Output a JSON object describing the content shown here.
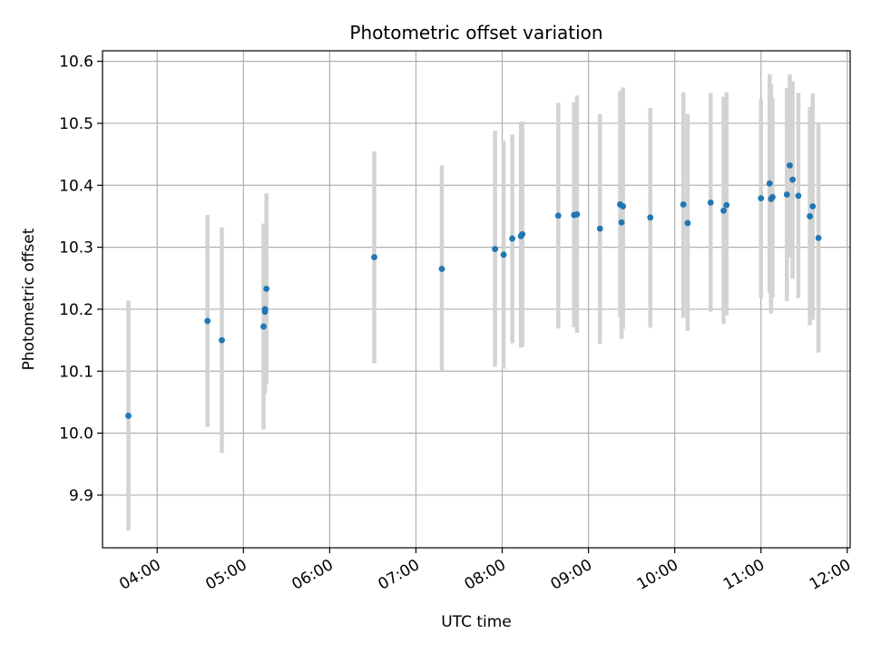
{
  "chart_data": {
    "type": "scatter",
    "title": "Photometric offset variation",
    "xlabel": "UTC time",
    "ylabel": "Photometric offset",
    "xlim": [
      "03:22",
      "12:02"
    ],
    "ylim": [
      9.815,
      10.617
    ],
    "x_ticks": [
      "04:00",
      "05:00",
      "06:00",
      "07:00",
      "08:00",
      "09:00",
      "10:00",
      "11:00",
      "12:00"
    ],
    "y_ticks": [
      9.9,
      10.0,
      10.1,
      10.2,
      10.3,
      10.4,
      10.5,
      10.6
    ],
    "grid": true,
    "colors": {
      "points": "#1f77b4",
      "errorbars": "#d3d3d3",
      "grid": "#b0b0b0"
    },
    "points": [
      {
        "x": "03:40",
        "y": 10.028,
        "low": 9.843,
        "high": 10.214
      },
      {
        "x": "04:35",
        "y": 10.181,
        "low": 10.01,
        "high": 10.352
      },
      {
        "x": "04:45",
        "y": 10.15,
        "low": 9.968,
        "high": 10.332
      },
      {
        "x": "05:14",
        "y": 10.172,
        "low": 10.006,
        "high": 10.338
      },
      {
        "x": "05:15",
        "y": 10.196,
        "low": 10.064,
        "high": 10.327
      },
      {
        "x": "05:15",
        "y": 10.2,
        "low": 10.085,
        "high": 10.316
      },
      {
        "x": "05:16",
        "y": 10.233,
        "low": 10.079,
        "high": 10.387
      },
      {
        "x": "06:31",
        "y": 10.284,
        "low": 10.113,
        "high": 10.455
      },
      {
        "x": "07:18",
        "y": 10.265,
        "low": 10.1,
        "high": 10.432
      },
      {
        "x": "07:55",
        "y": 10.297,
        "low": 10.107,
        "high": 10.488
      },
      {
        "x": "08:01",
        "y": 10.288,
        "low": 10.104,
        "high": 10.472
      },
      {
        "x": "08:07",
        "y": 10.314,
        "low": 10.145,
        "high": 10.482
      },
      {
        "x": "08:13",
        "y": 10.318,
        "low": 10.138,
        "high": 10.499
      },
      {
        "x": "08:14",
        "y": 10.321,
        "low": 10.14,
        "high": 10.503
      },
      {
        "x": "08:39",
        "y": 10.351,
        "low": 10.169,
        "high": 10.533
      },
      {
        "x": "08:50",
        "y": 10.352,
        "low": 10.171,
        "high": 10.534
      },
      {
        "x": "08:52",
        "y": 10.353,
        "low": 10.162,
        "high": 10.545
      },
      {
        "x": "09:08",
        "y": 10.33,
        "low": 10.144,
        "high": 10.515
      },
      {
        "x": "09:22",
        "y": 10.369,
        "low": 10.187,
        "high": 10.552
      },
      {
        "x": "09:23",
        "y": 10.34,
        "low": 10.152,
        "high": 10.528
      },
      {
        "x": "09:24",
        "y": 10.366,
        "low": 10.168,
        "high": 10.558
      },
      {
        "x": "09:43",
        "y": 10.348,
        "low": 10.17,
        "high": 10.525
      },
      {
        "x": "10:06",
        "y": 10.369,
        "low": 10.186,
        "high": 10.55
      },
      {
        "x": "10:09",
        "y": 10.339,
        "low": 10.165,
        "high": 10.515
      },
      {
        "x": "10:25",
        "y": 10.372,
        "low": 10.196,
        "high": 10.549
      },
      {
        "x": "10:34",
        "y": 10.359,
        "low": 10.176,
        "high": 10.543
      },
      {
        "x": "10:36",
        "y": 10.368,
        "low": 10.19,
        "high": 10.55
      },
      {
        "x": "11:00",
        "y": 10.379,
        "low": 10.218,
        "high": 10.539
      },
      {
        "x": "11:06",
        "y": 10.403,
        "low": 10.226,
        "high": 10.579
      },
      {
        "x": "11:07",
        "y": 10.378,
        "low": 10.193,
        "high": 10.563
      },
      {
        "x": "11:08",
        "y": 10.381,
        "low": 10.219,
        "high": 10.541
      },
      {
        "x": "11:18",
        "y": 10.385,
        "low": 10.213,
        "high": 10.557
      },
      {
        "x": "11:20",
        "y": 10.432,
        "low": 10.284,
        "high": 10.579
      },
      {
        "x": "11:22",
        "y": 10.409,
        "low": 10.249,
        "high": 10.568
      },
      {
        "x": "11:26",
        "y": 10.383,
        "low": 10.218,
        "high": 10.549
      },
      {
        "x": "11:34",
        "y": 10.35,
        "low": 10.174,
        "high": 10.526
      },
      {
        "x": "11:36",
        "y": 10.366,
        "low": 10.183,
        "high": 10.548
      },
      {
        "x": "11:40",
        "y": 10.315,
        "low": 10.13,
        "high": 10.5
      }
    ]
  }
}
